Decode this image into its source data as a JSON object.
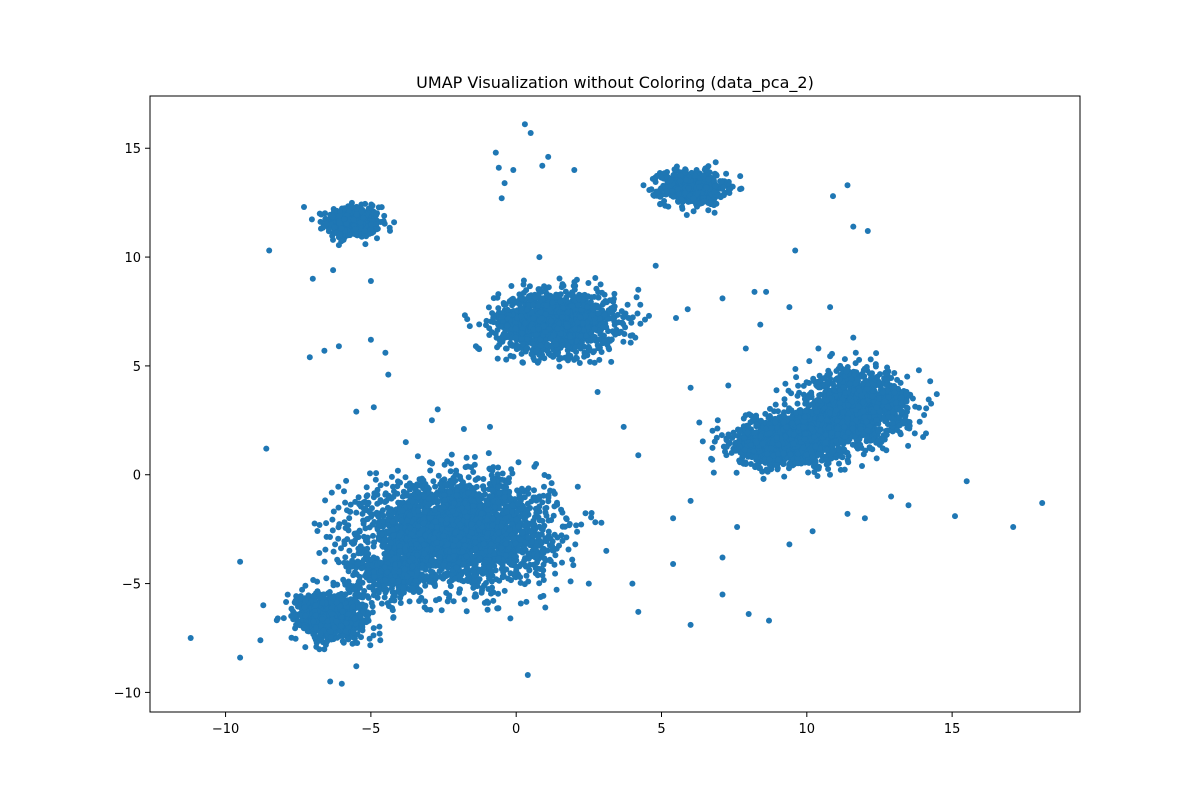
{
  "chart_data": {
    "type": "scatter",
    "title": "UMAP Visualization without Coloring (data_pca_2)",
    "xlabel": "",
    "ylabel": "",
    "xlim": [
      -12.6,
      19.4
    ],
    "ylim": [
      -10.9,
      17.4
    ],
    "x_ticks": [
      -10,
      -5,
      0,
      5,
      10,
      15
    ],
    "y_ticks": [
      -10,
      -5,
      0,
      5,
      10,
      15
    ],
    "x_tick_labels": [
      "−10",
      "−5",
      "0",
      "5",
      "10",
      "15"
    ],
    "y_tick_labels": [
      "−10",
      "−5",
      "0",
      "5",
      "10",
      "15"
    ],
    "grid": false,
    "legend": "none",
    "marker_color": "#1f77b4",
    "clusters": [
      {
        "center": [
          -5.6,
          11.6
        ],
        "spread": [
          0.45,
          0.35
        ],
        "count": 500
      },
      {
        "center": [
          6.1,
          13.2
        ],
        "spread": [
          0.55,
          0.4
        ],
        "count": 550
      },
      {
        "center": [
          1.4,
          7.0
        ],
        "spread": [
          1.0,
          0.7
        ],
        "count": 1500
      },
      {
        "center": [
          -2.0,
          -2.6
        ],
        "spread": [
          1.55,
          1.15
        ],
        "count": 3000
      },
      {
        "center": [
          -6.3,
          -6.5
        ],
        "spread": [
          0.65,
          0.55
        ],
        "count": 800
      },
      {
        "center": [
          -4.3,
          -4.6
        ],
        "spread": [
          0.7,
          0.5
        ],
        "count": 300
      },
      {
        "center": [
          9.3,
          1.5
        ],
        "spread": [
          0.9,
          0.55
        ],
        "count": 1200
      },
      {
        "center": [
          11.7,
          3.1
        ],
        "spread": [
          0.9,
          0.8
        ],
        "count": 1200
      },
      {
        "center": [
          10.3,
          2.1
        ],
        "spread": [
          0.6,
          0.5
        ],
        "count": 500
      }
    ],
    "outliers": [
      [
        -11.2,
        -7.5
      ],
      [
        -9.5,
        -8.4
      ],
      [
        -9.5,
        -4.0
      ],
      [
        -8.6,
        1.2
      ],
      [
        -8.5,
        10.3
      ],
      [
        -8.7,
        -6.0
      ],
      [
        -8.8,
        -7.6
      ],
      [
        -7.1,
        5.4
      ],
      [
        -6.6,
        5.7
      ],
      [
        -6.1,
        5.9
      ],
      [
        -5.0,
        6.2
      ],
      [
        -4.5,
        5.6
      ],
      [
        -4.4,
        4.6
      ],
      [
        -4.9,
        3.1
      ],
      [
        -5.5,
        2.9
      ],
      [
        -3.8,
        1.5
      ],
      [
        -2.7,
        3.0
      ],
      [
        -1.8,
        2.1
      ],
      [
        -0.9,
        2.2
      ],
      [
        -2.9,
        2.5
      ],
      [
        -7.0,
        9.0
      ],
      [
        -6.3,
        9.4
      ],
      [
        -5.0,
        8.9
      ],
      [
        -4.2,
        11.6
      ],
      [
        -7.3,
        12.3
      ],
      [
        -0.7,
        14.8
      ],
      [
        -0.6,
        14.1
      ],
      [
        -0.4,
        13.4
      ],
      [
        -0.5,
        12.7
      ],
      [
        0.3,
        16.1
      ],
      [
        0.5,
        15.7
      ],
      [
        0.9,
        14.2
      ],
      [
        1.1,
        14.6
      ],
      [
        2.0,
        14.0
      ],
      [
        -0.1,
        14.0
      ],
      [
        0.8,
        10.0
      ],
      [
        4.8,
        9.6
      ],
      [
        5.5,
        7.2
      ],
      [
        5.9,
        7.6
      ],
      [
        7.1,
        8.1
      ],
      [
        8.6,
        8.4
      ],
      [
        8.2,
        8.4
      ],
      [
        9.4,
        7.7
      ],
      [
        9.6,
        10.3
      ],
      [
        10.8,
        7.7
      ],
      [
        10.9,
        12.8
      ],
      [
        11.4,
        13.3
      ],
      [
        11.6,
        11.4
      ],
      [
        12.1,
        11.2
      ],
      [
        4.2,
        8.5
      ],
      [
        4.1,
        6.3
      ],
      [
        2.8,
        3.8
      ],
      [
        3.7,
        2.2
      ],
      [
        4.2,
        0.9
      ],
      [
        6.0,
        4.0
      ],
      [
        6.8,
        0.1
      ],
      [
        7.9,
        5.8
      ],
      [
        10.4,
        5.8
      ],
      [
        11.6,
        6.3
      ],
      [
        12.2,
        5.3
      ],
      [
        4.0,
        -5.0
      ],
      [
        4.2,
        -6.3
      ],
      [
        5.4,
        -4.1
      ],
      [
        5.4,
        -2.0
      ],
      [
        6.0,
        -1.2
      ],
      [
        6.0,
        -6.9
      ],
      [
        7.1,
        -3.8
      ],
      [
        7.1,
        -5.5
      ],
      [
        7.6,
        -2.4
      ],
      [
        8.0,
        -6.4
      ],
      [
        8.7,
        -6.7
      ],
      [
        9.4,
        -3.2
      ],
      [
        10.2,
        -2.6
      ],
      [
        11.4,
        -1.8
      ],
      [
        12.0,
        -2.0
      ],
      [
        13.5,
        -1.4
      ],
      [
        15.1,
        -1.9
      ],
      [
        15.5,
        -0.3
      ],
      [
        17.1,
        -2.4
      ],
      [
        18.1,
        -1.3
      ],
      [
        0.4,
        -9.2
      ],
      [
        -6.4,
        -9.5
      ],
      [
        -6.0,
        -9.6
      ],
      [
        -5.5,
        -8.8
      ],
      [
        -4.7,
        -7.3
      ],
      [
        -0.2,
        -6.6
      ],
      [
        1.0,
        -6.1
      ],
      [
        2.5,
        -5.0
      ],
      [
        3.1,
        -3.5
      ],
      [
        14.1,
        1.9
      ],
      [
        7.3,
        4.1
      ],
      [
        6.3,
        2.4
      ],
      [
        12.9,
        -1.0
      ],
      [
        11.9,
        0.4
      ],
      [
        8.4,
        6.9
      ]
    ]
  }
}
